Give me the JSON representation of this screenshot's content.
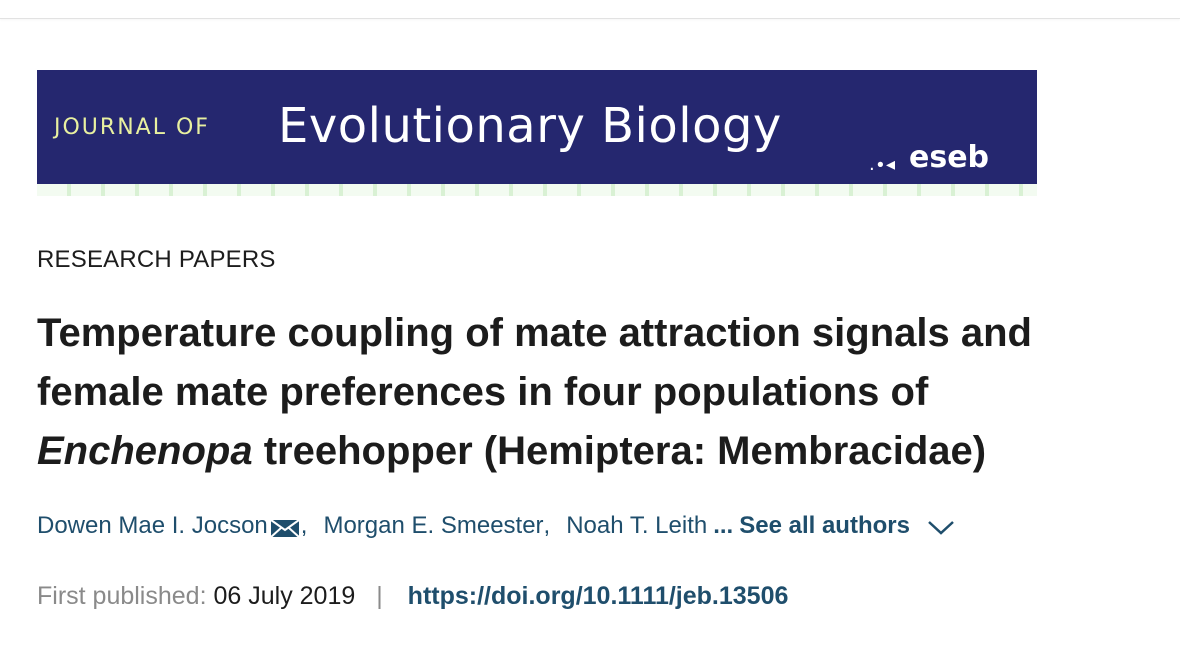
{
  "banner": {
    "journal_prefix": "JOURNAL OF",
    "journal_name": "Evolutionary Biology",
    "society_logo_text": "eseb",
    "colors": {
      "background": "#25276f",
      "prefix_text": "#e8f0a0",
      "name_text": "#ffffff"
    }
  },
  "article": {
    "section": "RESEARCH PAPERS",
    "title_line1": "Temperature coupling of mate attraction signals and",
    "title_line2": "female mate preferences in four populations of",
    "title_genus": "Enchenopa",
    "title_line3_rest": " treehopper (Hemiptera: Membracidae)",
    "authors": [
      {
        "name": "Dowen Mae I. Jocson",
        "corresponding": true
      },
      {
        "name": "Morgan E. Smeester",
        "corresponding": false
      },
      {
        "name": "Noah T. Leith",
        "corresponding": false
      }
    ],
    "author_separator": ",",
    "ellipsis": "...",
    "see_all_label": "See all authors",
    "first_published_label": "First published:",
    "first_published_date": "06 July 2019",
    "pipe": "|",
    "doi": "https://doi.org/10.1111/jeb.13506"
  },
  "icons": {
    "mail": "envelope-icon",
    "expand": "chevron-down-icon"
  },
  "colors": {
    "link": "#1f4e6c",
    "muted": "#8a8a8a",
    "text": "#1c1c1c"
  }
}
